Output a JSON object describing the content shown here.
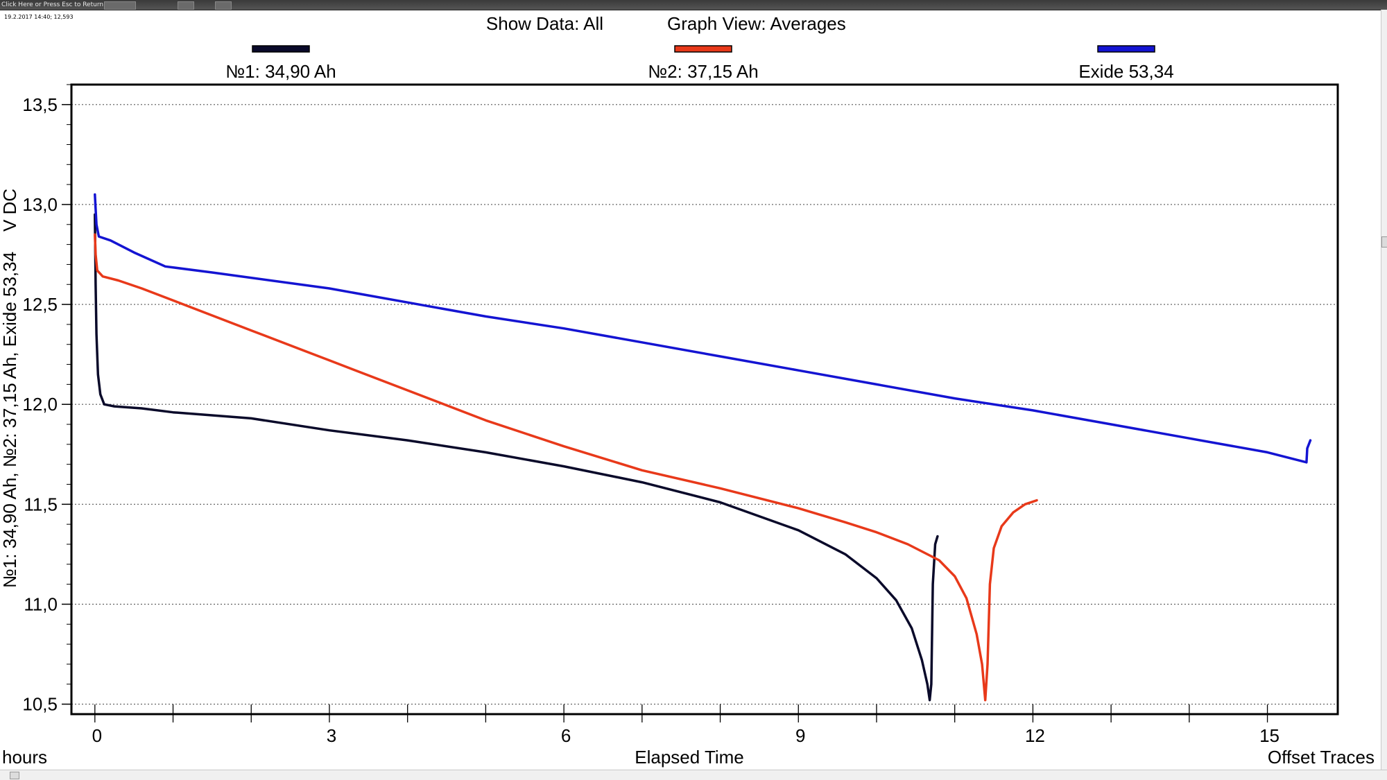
{
  "window": {
    "return_hint": "Click Here or Press Esc to Return",
    "readout": "19.2.2017 14:40; 12,593"
  },
  "header": {
    "show_data_label": "Show Data: All",
    "graph_view_label": "Graph View: Averages"
  },
  "colors": {
    "trace_1": "#0a0a2a",
    "trace_2": "#e8391a",
    "trace_3": "#1414d2",
    "grid": "#555555",
    "frame": "#000000"
  },
  "footer": {
    "x_unit": "hours",
    "x_title": "Elapsed Time",
    "offset_traces": "Offset Traces"
  },
  "chart_data": {
    "type": "line",
    "title": "",
    "xlabel": "Elapsed Time",
    "ylabel": "№1: 34,90 Ah, №2: 37,15 Ah, Exide 53,34    V DC",
    "xlim": [
      -0.3,
      15.9
    ],
    "ylim": [
      10.45,
      13.6
    ],
    "x_ticks": [
      0,
      3,
      6,
      9,
      12,
      15
    ],
    "x_tick_labels": [
      "0",
      "3",
      "6",
      "9",
      "12",
      "15"
    ],
    "x_minor_step": 1,
    "y_ticks": [
      13.5,
      13.0,
      12.5,
      12.0,
      11.5,
      11.0,
      10.5
    ],
    "y_tick_labels": [
      "13,5",
      "13,0",
      "12,5",
      "12,0",
      "11,5",
      "11,0",
      "10,5"
    ],
    "y_minor_step": 0.1,
    "grid": "horizontal dotted",
    "legend_position": "top",
    "series": [
      {
        "name": "№1: 34,90 Ah",
        "color": "#0a0a2a",
        "points": [
          [
            0,
            12.95
          ],
          [
            0.01,
            12.6
          ],
          [
            0.02,
            12.35
          ],
          [
            0.04,
            12.15
          ],
          [
            0.07,
            12.05
          ],
          [
            0.12,
            12.0
          ],
          [
            0.25,
            11.99
          ],
          [
            0.6,
            11.98
          ],
          [
            1,
            11.96
          ],
          [
            2,
            11.93
          ],
          [
            3,
            11.87
          ],
          [
            4,
            11.82
          ],
          [
            5,
            11.76
          ],
          [
            6,
            11.69
          ],
          [
            7,
            11.61
          ],
          [
            8,
            11.51
          ],
          [
            9,
            11.37
          ],
          [
            9.6,
            11.25
          ],
          [
            10,
            11.13
          ],
          [
            10.25,
            11.02
          ],
          [
            10.45,
            10.88
          ],
          [
            10.58,
            10.72
          ],
          [
            10.65,
            10.6
          ],
          [
            10.68,
            10.52
          ],
          [
            10.7,
            10.6
          ],
          [
            10.72,
            11.1
          ],
          [
            10.75,
            11.3
          ],
          [
            10.78,
            11.34
          ]
        ]
      },
      {
        "name": "№2: 37,15 Ah",
        "color": "#e8391a",
        "points": [
          [
            0,
            12.85
          ],
          [
            0.01,
            12.75
          ],
          [
            0.03,
            12.67
          ],
          [
            0.1,
            12.64
          ],
          [
            0.3,
            12.62
          ],
          [
            0.6,
            12.58
          ],
          [
            1,
            12.52
          ],
          [
            2,
            12.37
          ],
          [
            3,
            12.22
          ],
          [
            4,
            12.07
          ],
          [
            5,
            11.92
          ],
          [
            6,
            11.79
          ],
          [
            7,
            11.67
          ],
          [
            8,
            11.58
          ],
          [
            9,
            11.48
          ],
          [
            9.6,
            11.41
          ],
          [
            10,
            11.36
          ],
          [
            10.4,
            11.3
          ],
          [
            10.8,
            11.22
          ],
          [
            11,
            11.14
          ],
          [
            11.15,
            11.03
          ],
          [
            11.28,
            10.85
          ],
          [
            11.35,
            10.7
          ],
          [
            11.39,
            10.52
          ],
          [
            11.42,
            10.7
          ],
          [
            11.45,
            11.1
          ],
          [
            11.5,
            11.28
          ],
          [
            11.6,
            11.39
          ],
          [
            11.75,
            11.46
          ],
          [
            11.9,
            11.5
          ],
          [
            12.05,
            11.52
          ]
        ]
      },
      {
        "name": "Exide 53,34",
        "color": "#1414d2",
        "points": [
          [
            0,
            13.05
          ],
          [
            0.02,
            12.9
          ],
          [
            0.05,
            12.84
          ],
          [
            0.2,
            12.82
          ],
          [
            0.5,
            12.76
          ],
          [
            0.9,
            12.69
          ],
          [
            1.5,
            12.66
          ],
          [
            3,
            12.58
          ],
          [
            4,
            12.51
          ],
          [
            5,
            12.44
          ],
          [
            6,
            12.38
          ],
          [
            7,
            12.31
          ],
          [
            8,
            12.24
          ],
          [
            9,
            12.17
          ],
          [
            10,
            12.1
          ],
          [
            11,
            12.03
          ],
          [
            12,
            11.97
          ],
          [
            13,
            11.9
          ],
          [
            14,
            11.83
          ],
          [
            15,
            11.76
          ],
          [
            15.4,
            11.72
          ],
          [
            15.5,
            11.71
          ],
          [
            15.51,
            11.78
          ],
          [
            15.55,
            11.82
          ]
        ]
      }
    ]
  }
}
